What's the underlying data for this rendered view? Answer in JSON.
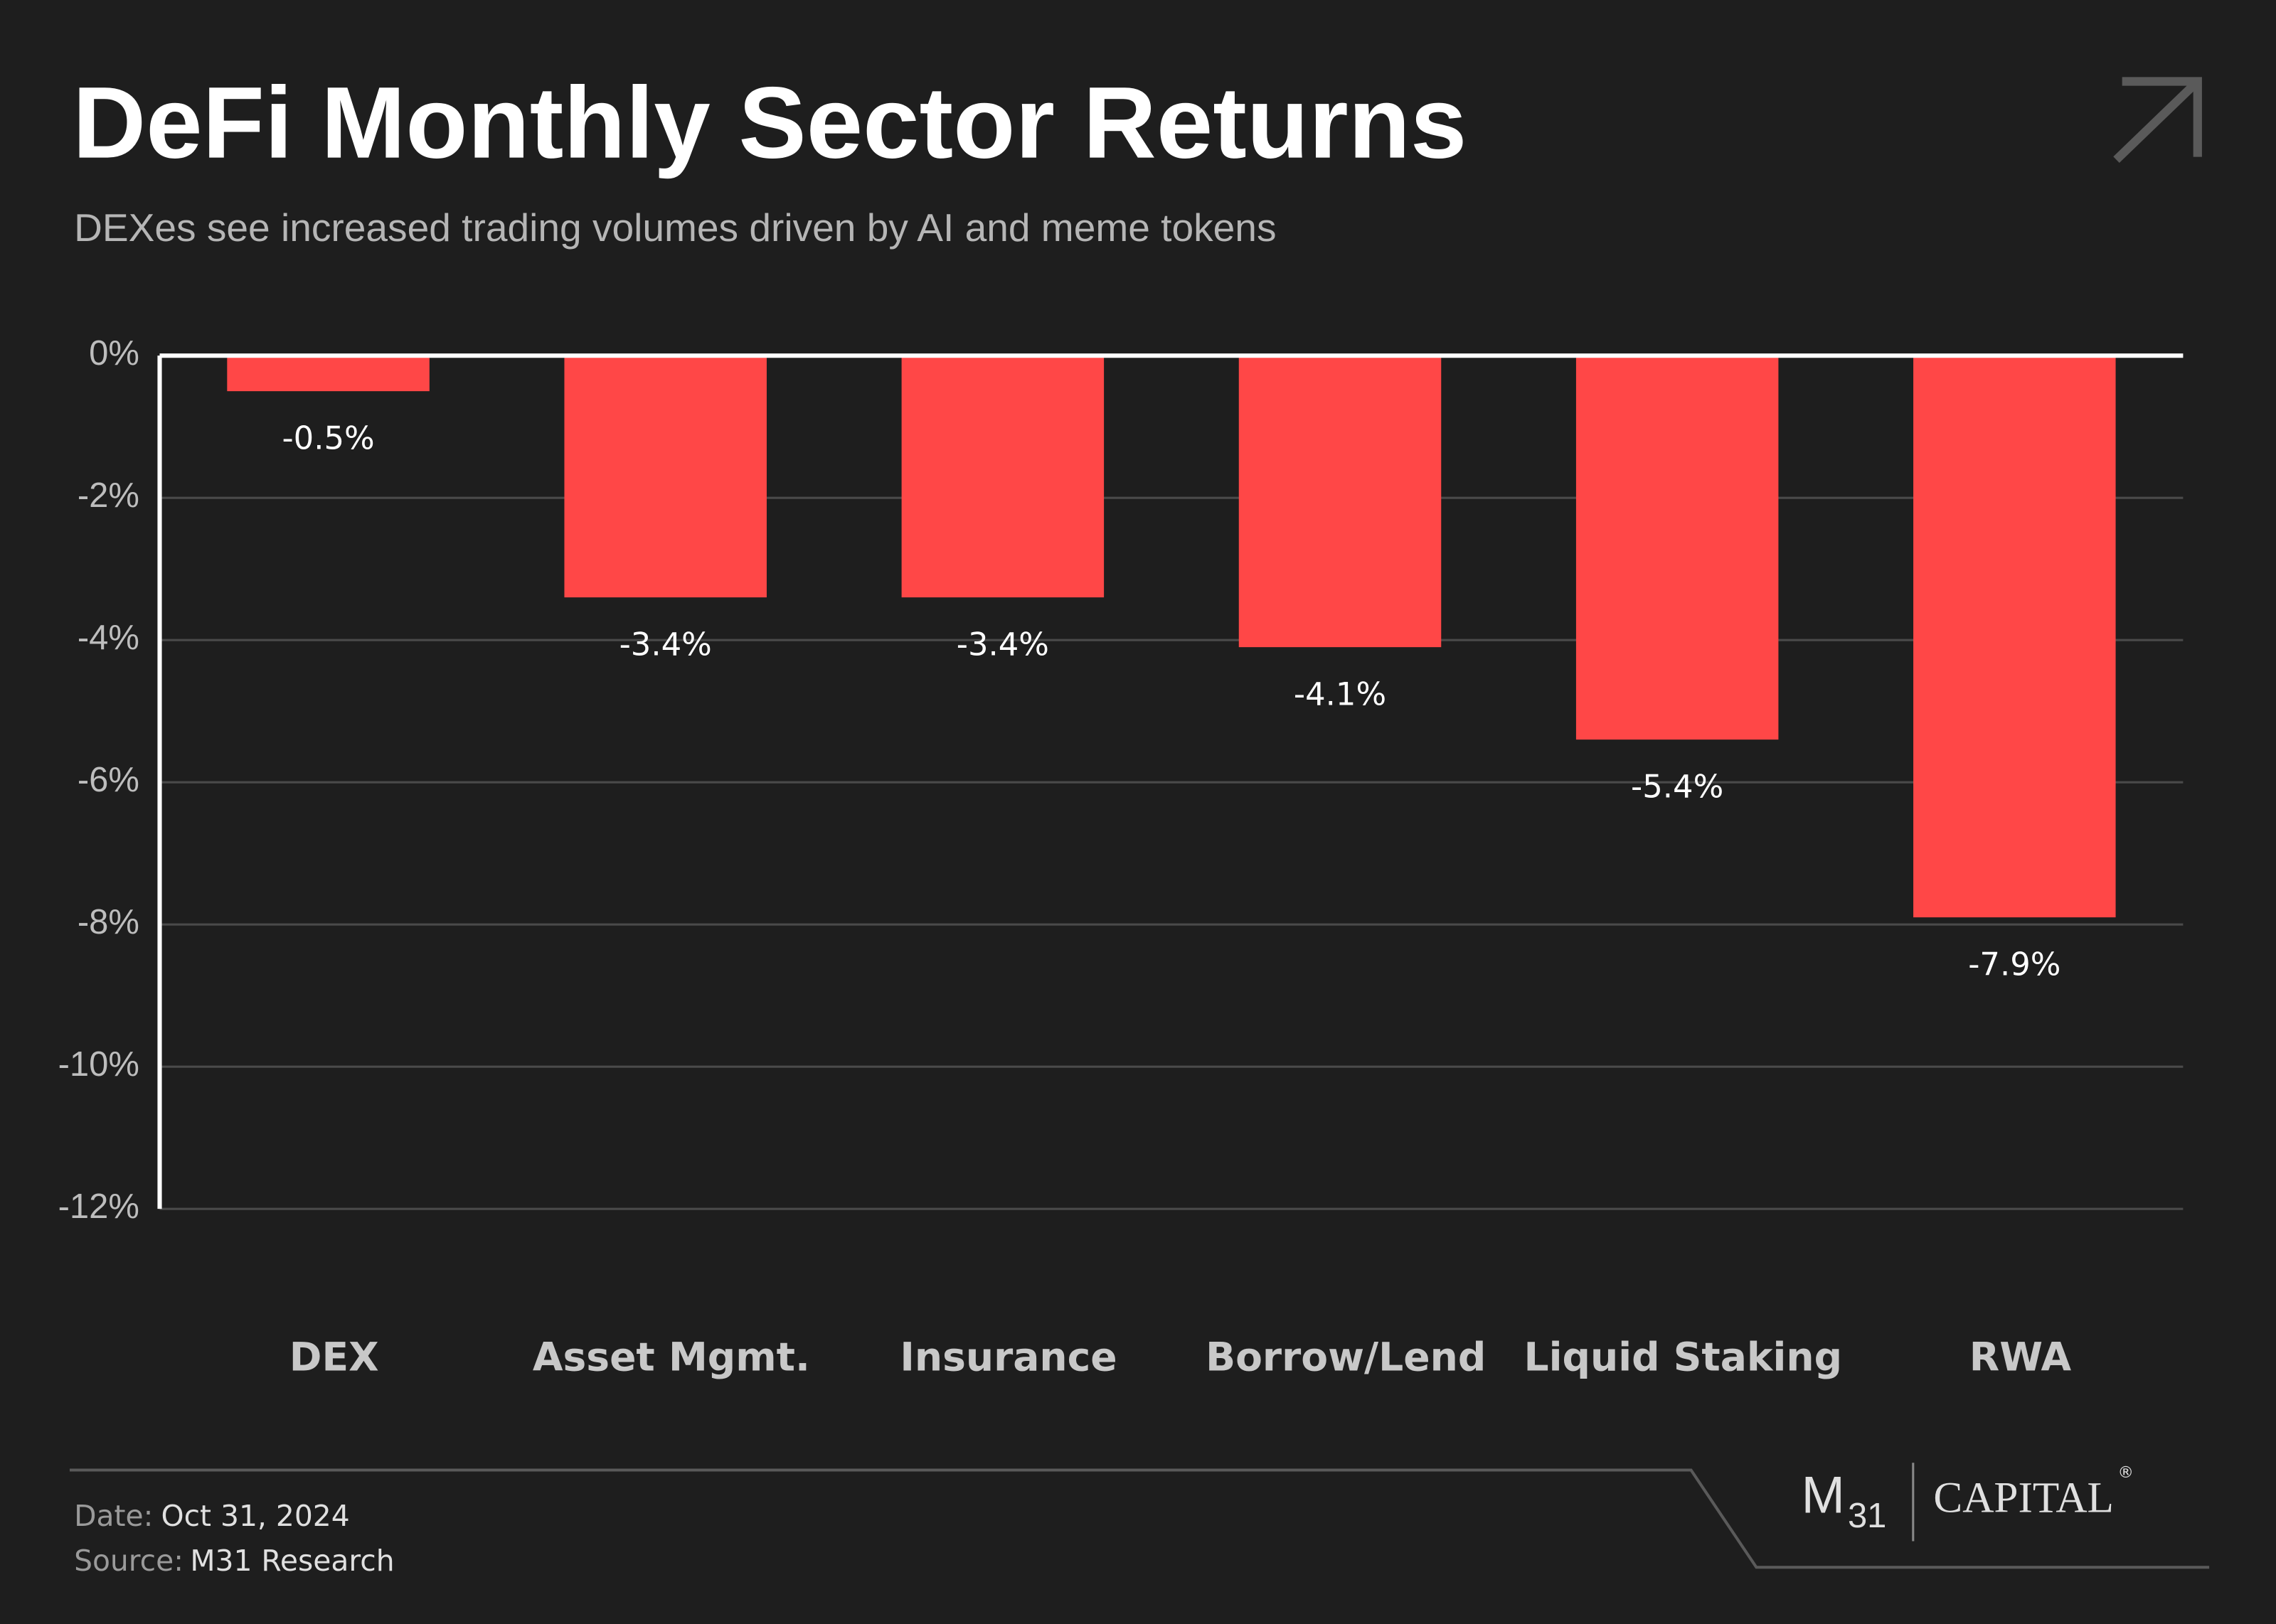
{
  "chart_data": {
    "type": "bar",
    "title": "DeFi Monthly Sector Returns",
    "subtitle": "DEXes see increased trading volumes driven by AI and meme tokens",
    "categories": [
      "DEX",
      "Asset Mgmt.",
      "Insurance",
      "Borrow/Lend",
      "Liquid Staking",
      "RWA"
    ],
    "values": [
      -0.5,
      -3.4,
      -3.4,
      -4.1,
      -5.4,
      -7.9
    ],
    "value_labels": [
      "-0.5%",
      "-3.4%",
      "-3.4%",
      "-4.1%",
      "-5.4%",
      "-7.9%"
    ],
    "color": "#ff4747",
    "ylim": [
      -12,
      0
    ],
    "yticks": [
      {
        "value": 0,
        "label": "0%"
      },
      {
        "value": -2,
        "label": "-2%"
      },
      {
        "value": -4,
        "label": "-4%"
      },
      {
        "value": -6,
        "label": "-6%"
      },
      {
        "value": -8,
        "label": "-8%"
      },
      {
        "value": -10,
        "label": "-10%"
      },
      {
        "value": -12,
        "label": "-12%"
      }
    ],
    "grid": true
  },
  "footer": {
    "date_label": "Date:",
    "date": "Oct 31, 2024",
    "source_label": "Source:",
    "source": "M31 Research",
    "logo": {
      "m": "M",
      "num": "31",
      "capital": "CAPITAL",
      "mark": "®"
    }
  }
}
